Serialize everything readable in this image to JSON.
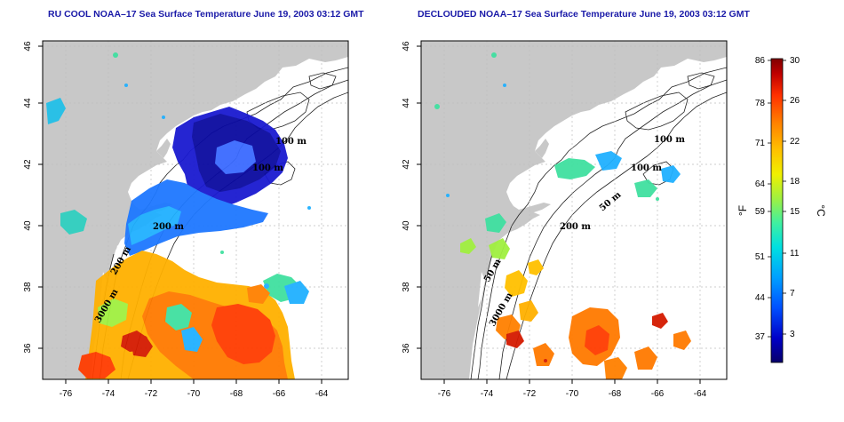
{
  "titles": {
    "left": "RU COOL NOAA–17 Sea Surface Temperature June 19, 2003 03:12 GMT",
    "right": "DECLOUDED NOAA–17 Sea Surface Temperature June 19, 2003 03:12 GMT"
  },
  "axes": {
    "lon_ticks": [
      "-76",
      "-74",
      "-72",
      "-70",
      "-68",
      "-66",
      "-64"
    ],
    "lat_ticks": [
      "46",
      "44",
      "42",
      "40",
      "38",
      "36"
    ]
  },
  "contour_labels": {
    "left": [
      "100 m",
      "200 m",
      "100 m",
      "3000 m",
      "200 m"
    ],
    "right": [
      "100 m",
      "100 m",
      "50 m",
      "200 m",
      "50 m",
      "3000 m"
    ]
  },
  "colorbar": {
    "fahrenheit_ticks": [
      "86",
      "78",
      "71",
      "64",
      "59",
      "51",
      "44",
      "37"
    ],
    "celsius_ticks": [
      "30",
      "26",
      "22",
      "18",
      "15",
      "11",
      "7",
      "3"
    ],
    "unit_f": "°F",
    "unit_c": "°C"
  },
  "colors": {
    "land": "#c8c8c8",
    "title": "#1a1aa8",
    "scale": [
      "#08006a",
      "#0000c8",
      "#0050ff",
      "#00a0ff",
      "#00e0e0",
      "#40f0a0",
      "#a0f040",
      "#f0f000",
      "#ffc000",
      "#ff8000",
      "#ff3000",
      "#c00000",
      "#800000"
    ]
  }
}
